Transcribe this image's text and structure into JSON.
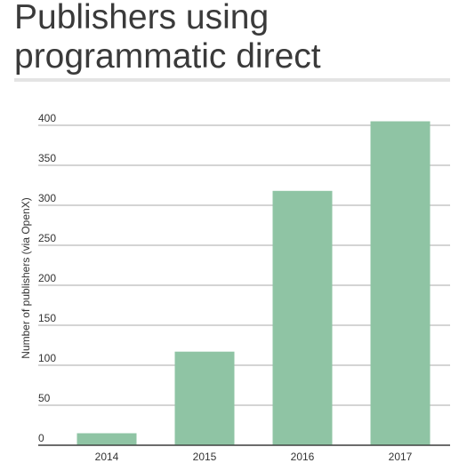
{
  "title": "Publishers using programmatic direct",
  "chart_data": {
    "type": "bar",
    "title": "Publishers using programmatic direct",
    "categories": [
      "2014",
      "2015",
      "2016",
      "2017"
    ],
    "values": [
      15,
      117,
      318,
      405
    ],
    "xlabel": "",
    "ylabel": "Number of publishers (via OpenX)",
    "ylim": [
      0,
      400
    ],
    "yticks": [
      0,
      50,
      100,
      150,
      200,
      250,
      300,
      350,
      400
    ],
    "grid": true,
    "bar_color": "#8fc4a4",
    "grid_color": "#8c8c8c"
  }
}
